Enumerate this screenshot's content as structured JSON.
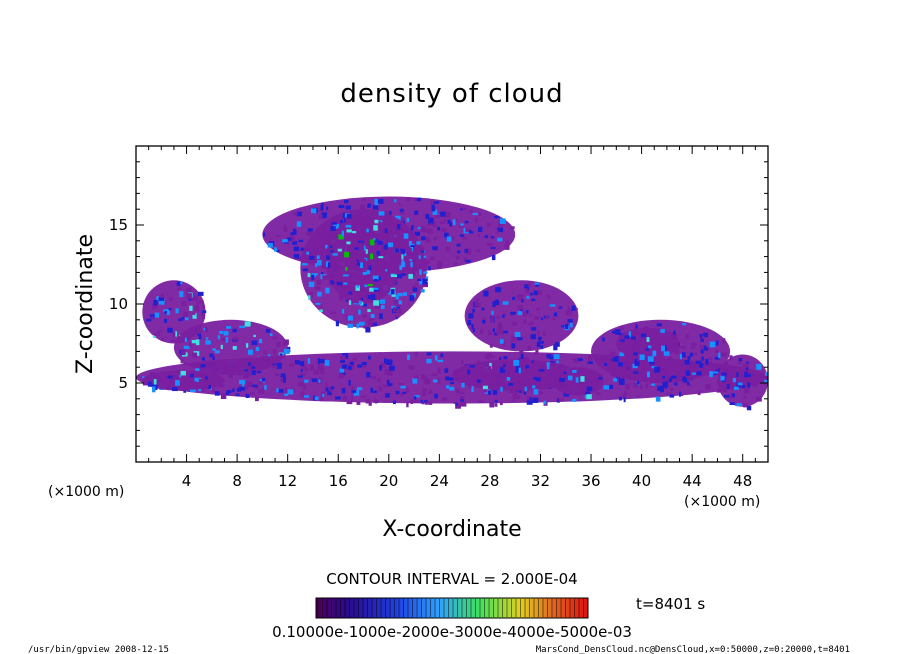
{
  "chart_data": {
    "type": "heatmap",
    "title": "density of cloud",
    "xlabel": "X-coordinate",
    "ylabel": "Z-coordinate",
    "x_unit": "(×1000 m)",
    "y_unit": "(×1000 m)",
    "xlim": [
      0,
      50
    ],
    "ylim": [
      0,
      20
    ],
    "x_ticks": [
      "4",
      "8",
      "12",
      "16",
      "20",
      "24",
      "28",
      "32",
      "36",
      "40",
      "44",
      "48"
    ],
    "y_ticks": [
      "5",
      "10",
      "15"
    ],
    "x_tick_values": [
      4,
      8,
      12,
      16,
      20,
      24,
      28,
      32,
      36,
      40,
      44,
      48
    ],
    "y_tick_values": [
      5,
      10,
      15
    ],
    "contour_interval": "CONTOUR INTERVAL = 2.000E-04",
    "time_label": "t=8401 s",
    "colorbar_labels": "0.10000e-1000e-2000e-3000e-4000e-5000e-03",
    "colorbar_range": [
      0.0,
      0.0006
    ],
    "colors": {
      "low": "#7a1fa0",
      "mid_low": "#2020d0",
      "mid": "#1890ff",
      "mid_high": "#40e0e0",
      "high": "#00c000"
    },
    "cloud_regions": [
      {
        "x": [
          10,
          30
        ],
        "z": [
          12,
          16.8
        ],
        "level": 1
      },
      {
        "x": [
          13,
          23
        ],
        "z": [
          8.5,
          16
        ],
        "level": 2
      },
      {
        "x": [
          15,
          21
        ],
        "z": [
          10,
          15.5
        ],
        "level": 3
      },
      {
        "x": [
          0.5,
          5.5
        ],
        "z": [
          7.5,
          11.5
        ],
        "level": 2
      },
      {
        "x": [
          3,
          12
        ],
        "z": [
          5.5,
          9
        ],
        "level": 2
      },
      {
        "x": [
          0,
          50
        ],
        "z": [
          3.7,
          7
        ],
        "level": 1
      },
      {
        "x": [
          0.5,
          7
        ],
        "z": [
          4.5,
          5.8
        ],
        "level": 2
      },
      {
        "x": [
          25,
          35
        ],
        "z": [
          4.5,
          6.5
        ],
        "level": 2
      },
      {
        "x": [
          33,
          37
        ],
        "z": [
          4.2,
          6
        ],
        "level": 3
      },
      {
        "x": [
          26,
          35
        ],
        "z": [
          7,
          11.5
        ],
        "level": 1
      },
      {
        "x": [
          36,
          47
        ],
        "z": [
          5,
          9
        ],
        "level": 1
      },
      {
        "x": [
          38,
          43
        ],
        "z": [
          6.5,
          8.5
        ],
        "level": 2
      },
      {
        "x": [
          46,
          50
        ],
        "z": [
          3.5,
          6.8
        ],
        "level": 1
      }
    ]
  },
  "footer": {
    "left": "/usr/bin/gpview   2008-12-15",
    "right": "MarsCond_DensCloud.nc@DensCloud,x=0:50000,z=0:20000,t=8401"
  }
}
